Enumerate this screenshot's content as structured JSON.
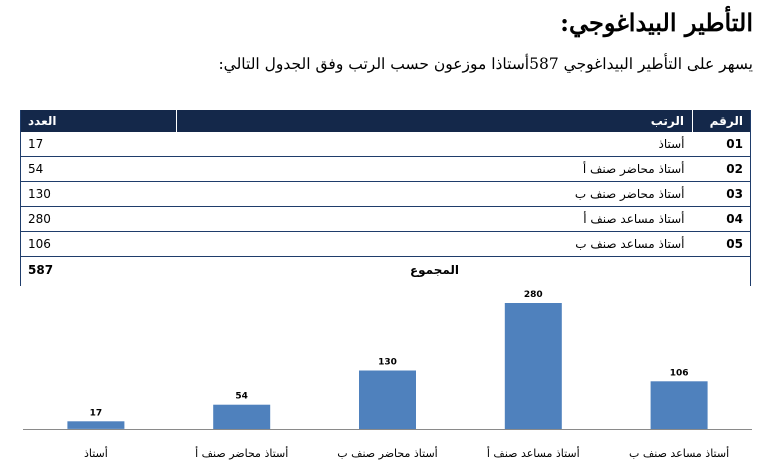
{
  "heading": "التأطير البيداغوجي:",
  "intro": "يسهر على التأطير البيداغوجي 587أستاذا موزعون حسب الرتب وفق الجدول التالي:",
  "table": {
    "headers": {
      "num": "الرقم",
      "rank": "الرتب",
      "count": "العدد"
    },
    "rows": [
      {
        "num": "01",
        "rank": "أستاذ",
        "count": "17"
      },
      {
        "num": "02",
        "rank": "أستاذ محاضر صنف أ",
        "count": "54"
      },
      {
        "num": "03",
        "rank": "أستاذ محاضر صنف ب",
        "count": "130"
      },
      {
        "num": "04",
        "rank": "أستاذ مساعد صنف أ",
        "count": "280"
      },
      {
        "num": "05",
        "rank": "أستاذ مساعد صنف ب",
        "count": "106"
      }
    ],
    "total": {
      "label": "المجموع",
      "count": "587"
    },
    "header_color": "#14284a",
    "border_color": "#1f3d6b"
  },
  "chart_data": {
    "type": "bar",
    "categories": [
      "أستاذ",
      "أستاذ محاضر صنف أ",
      "أستاذ محاضر صنف ب",
      "أستاذ مساعد صنف أ",
      "أستاذ مساعد صنف ب"
    ],
    "values": [
      17,
      54,
      130,
      280,
      106
    ],
    "data_labels": [
      "17",
      "54",
      "130",
      "280",
      "106"
    ],
    "title": "",
    "xlabel": "",
    "ylabel": "",
    "ylim": [
      0,
      300
    ],
    "grid": false,
    "legend": "none",
    "bar_color": "#4f81bd"
  }
}
